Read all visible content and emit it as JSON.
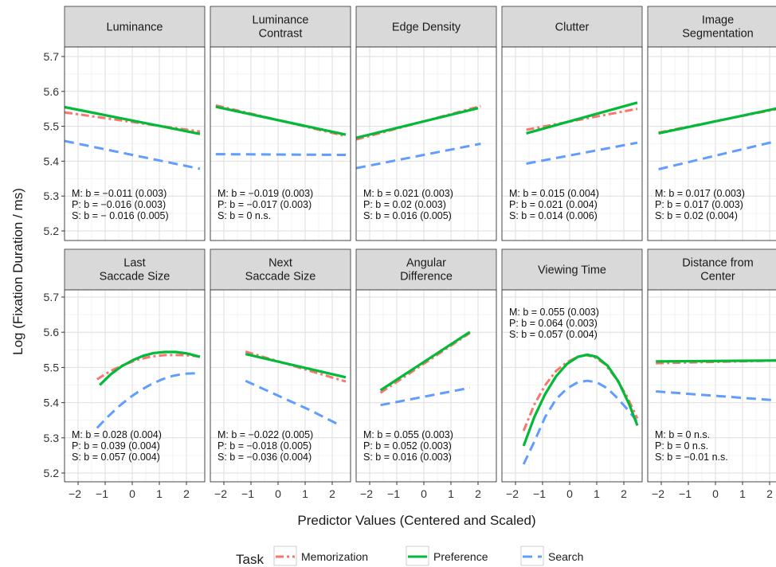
{
  "chart_data": {
    "type": "line",
    "xlabel": "Predictor Values (Centered and Scaled)",
    "ylabel": "Log (Fixation Duration / ms)",
    "xlim": [
      -2.5,
      2.5
    ],
    "ylim": [
      5.18,
      5.73
    ],
    "xticks": [
      -2,
      -1,
      0,
      1,
      2
    ],
    "yticks": [
      5.2,
      5.3,
      5.4,
      5.5,
      5.6,
      5.7
    ],
    "grid": true,
    "legend": {
      "title": "Task",
      "position": "bottom",
      "entries": [
        {
          "name": "Memorization",
          "color": "#f8766d",
          "dash": "dotdash"
        },
        {
          "name": "Preference",
          "color": "#00ba38",
          "dash": "solid"
        },
        {
          "name": "Search",
          "color": "#619cff",
          "dash": "dashed"
        }
      ]
    },
    "panels": [
      {
        "strip": [
          "Luminance"
        ],
        "annotations": [
          "M: b = −0.011 (0.003)",
          "P: b = −0.016 (0.003)",
          "S: b = − 0.016 (0.005)"
        ],
        "anno_pos": "bottom",
        "series": [
          {
            "name": "Memorization",
            "x": [
              -2.5,
              2.5
            ],
            "y": [
              5.54,
              5.485
            ]
          },
          {
            "name": "Preference",
            "x": [
              -2.5,
              2.5
            ],
            "y": [
              5.555,
              5.478
            ]
          },
          {
            "name": "Search",
            "x": [
              -2.5,
              2.5
            ],
            "y": [
              5.458,
              5.378
            ]
          }
        ]
      },
      {
        "strip": [
          "Luminance",
          "Contrast"
        ],
        "annotations": [
          "M: b = −0.019 (0.003)",
          "P: b = −0.017 (0.003)",
          "S: b = 0 n.s."
        ],
        "anno_pos": "bottom",
        "series": [
          {
            "name": "Memorization",
            "x": [
              -2.3,
              2.5
            ],
            "y": [
              5.56,
              5.472
            ]
          },
          {
            "name": "Preference",
            "x": [
              -2.3,
              2.5
            ],
            "y": [
              5.556,
              5.476
            ]
          },
          {
            "name": "Search",
            "x": [
              -2.3,
              2.5
            ],
            "y": [
              5.42,
              5.418
            ]
          }
        ]
      },
      {
        "strip": [
          "Edge Density"
        ],
        "annotations": [
          "M: b = 0.021 (0.003)",
          "P: b = 0.02 (0.003)",
          "S: b = 0.016 (0.005)"
        ],
        "anno_pos": "bottom",
        "series": [
          {
            "name": "Memorization",
            "x": [
              -2.5,
              2.1
            ],
            "y": [
              5.462,
              5.558
            ]
          },
          {
            "name": "Preference",
            "x": [
              -2.5,
              2.0
            ],
            "y": [
              5.467,
              5.552
            ]
          },
          {
            "name": "Search",
            "x": [
              -2.5,
              2.1
            ],
            "y": [
              5.38,
              5.45
            ]
          }
        ]
      },
      {
        "strip": [
          "Clutter"
        ],
        "annotations": [
          "M: b = 0.015 (0.004)",
          "P: b = 0.021 (0.004)",
          "S: b = 0.014 (0.006)"
        ],
        "anno_pos": "bottom",
        "series": [
          {
            "name": "Memorization",
            "x": [
              -1.6,
              2.5
            ],
            "y": [
              5.49,
              5.55
            ]
          },
          {
            "name": "Preference",
            "x": [
              -1.6,
              2.5
            ],
            "y": [
              5.48,
              5.568
            ]
          },
          {
            "name": "Search",
            "x": [
              -1.6,
              2.5
            ],
            "y": [
              5.393,
              5.453
            ]
          }
        ]
      },
      {
        "strip": [
          "Image",
          "Segmentation"
        ],
        "annotations": [
          "M: b = 0.017 (0.003)",
          "P: b = 0.017 (0.003)",
          "S: b = 0.02 (0.004)"
        ],
        "anno_pos": "bottom",
        "series": [
          {
            "name": "Memorization",
            "x": [
              -2.1,
              2.5
            ],
            "y": [
              5.482,
              5.553
            ]
          },
          {
            "name": "Preference",
            "x": [
              -2.1,
              2.5
            ],
            "y": [
              5.48,
              5.555
            ]
          },
          {
            "name": "Search",
            "x": [
              -2.1,
              2.5
            ],
            "y": [
              5.377,
              5.462
            ]
          }
        ]
      },
      {
        "strip": [
          "Last",
          "Saccade Size"
        ],
        "annotations": [
          "M: b = 0.028 (0.004)",
          "P: b = 0.039 (0.004)",
          "S: b = 0.057 (0.004)"
        ],
        "anno_pos": "bottom",
        "series": [
          {
            "name": "Memorization",
            "x": [
              -1.3,
              -0.8,
              -0.3,
              0.2,
              0.7,
              1.2,
              1.7,
              2.1,
              2.5
            ],
            "y": [
              5.466,
              5.49,
              5.508,
              5.522,
              5.531,
              5.535,
              5.535,
              5.534,
              5.531
            ]
          },
          {
            "name": "Preference",
            "x": [
              -1.2,
              -0.8,
              -0.4,
              0.0,
              0.4,
              0.8,
              1.2,
              1.6,
              2.0,
              2.5
            ],
            "y": [
              5.45,
              5.48,
              5.503,
              5.52,
              5.533,
              5.541,
              5.544,
              5.544,
              5.54,
              5.53
            ]
          },
          {
            "name": "Search",
            "x": [
              -1.3,
              -0.9,
              -0.5,
              -0.1,
              0.3,
              0.7,
              1.1,
              1.5,
              1.9,
              2.5
            ],
            "y": [
              5.328,
              5.36,
              5.389,
              5.414,
              5.435,
              5.452,
              5.466,
              5.476,
              5.482,
              5.484
            ]
          }
        ]
      },
      {
        "strip": [
          "Next",
          "Saccade Size"
        ],
        "annotations": [
          "M: b = −0.022 (0.005)",
          "P: b = −0.018 (0.005)",
          "S: b = −0.036 (0.004)"
        ],
        "anno_pos": "bottom",
        "series": [
          {
            "name": "Memorization",
            "x": [
              -1.2,
              2.5
            ],
            "y": [
              5.545,
              5.46
            ]
          },
          {
            "name": "Preference",
            "x": [
              -1.2,
              2.5
            ],
            "y": [
              5.538,
              5.472
            ]
          },
          {
            "name": "Search",
            "x": [
              -1.2,
              0.0,
              1.2,
              2.3
            ],
            "y": [
              5.462,
              5.42,
              5.378,
              5.335
            ]
          }
        ]
      },
      {
        "strip": [
          "Angular",
          "Difference"
        ],
        "annotations": [
          "M: b = 0.055 (0.003)",
          "P: b = 0.052 (0.003)",
          "S: b = 0.016 (0.003)"
        ],
        "anno_pos": "bottom",
        "series": [
          {
            "name": "Memorization",
            "x": [
              -1.6,
              1.7
            ],
            "y": [
              5.428,
              5.598
            ]
          },
          {
            "name": "Preference",
            "x": [
              -1.6,
              1.7
            ],
            "y": [
              5.435,
              5.601
            ]
          },
          {
            "name": "Search",
            "x": [
              -1.6,
              1.7
            ],
            "y": [
              5.393,
              5.442
            ]
          }
        ]
      },
      {
        "strip": [
          "Viewing Time"
        ],
        "annotations": [
          "M: b = 0.055 (0.003)",
          "P: b = 0.064 (0.003)",
          "S: b = 0.057 (0.004)"
        ],
        "anno_pos": "top",
        "series": [
          {
            "name": "Memorization",
            "x": [
              -1.7,
              -1.3,
              -0.9,
              -0.5,
              -0.1,
              0.3,
              0.6,
              0.9,
              1.3,
              1.7,
              2.1,
              2.5
            ],
            "y": [
              5.32,
              5.395,
              5.45,
              5.49,
              5.515,
              5.53,
              5.535,
              5.53,
              5.51,
              5.47,
              5.42,
              5.355
            ]
          },
          {
            "name": "Preference",
            "x": [
              -1.7,
              -1.3,
              -0.9,
              -0.5,
              -0.1,
              0.3,
              0.65,
              1.0,
              1.4,
              1.8,
              2.2,
              2.5
            ],
            "y": [
              5.277,
              5.36,
              5.425,
              5.475,
              5.51,
              5.53,
              5.536,
              5.53,
              5.505,
              5.46,
              5.395,
              5.335
            ]
          },
          {
            "name": "Search",
            "x": [
              -1.7,
              -1.3,
              -0.9,
              -0.5,
              -0.1,
              0.3,
              0.65,
              1.0,
              1.4,
              1.8,
              2.2,
              2.5
            ],
            "y": [
              5.225,
              5.29,
              5.36,
              5.41,
              5.44,
              5.458,
              5.462,
              5.458,
              5.44,
              5.41,
              5.375,
              5.345
            ]
          }
        ]
      },
      {
        "strip": [
          "Distance from",
          "Center"
        ],
        "annotations": [
          "M: b = 0 n.s.",
          "P: b = 0 n.s.",
          "S: b = −0.01 n.s."
        ],
        "anno_pos": "bottom",
        "series": [
          {
            "name": "Memorization",
            "x": [
              -2.2,
              2.5
            ],
            "y": [
              5.512,
              5.52
            ]
          },
          {
            "name": "Preference",
            "x": [
              -2.2,
              2.5
            ],
            "y": [
              5.517,
              5.52
            ]
          },
          {
            "name": "Search",
            "x": [
              -2.2,
              2.5
            ],
            "y": [
              5.432,
              5.405
            ]
          }
        ]
      }
    ]
  }
}
